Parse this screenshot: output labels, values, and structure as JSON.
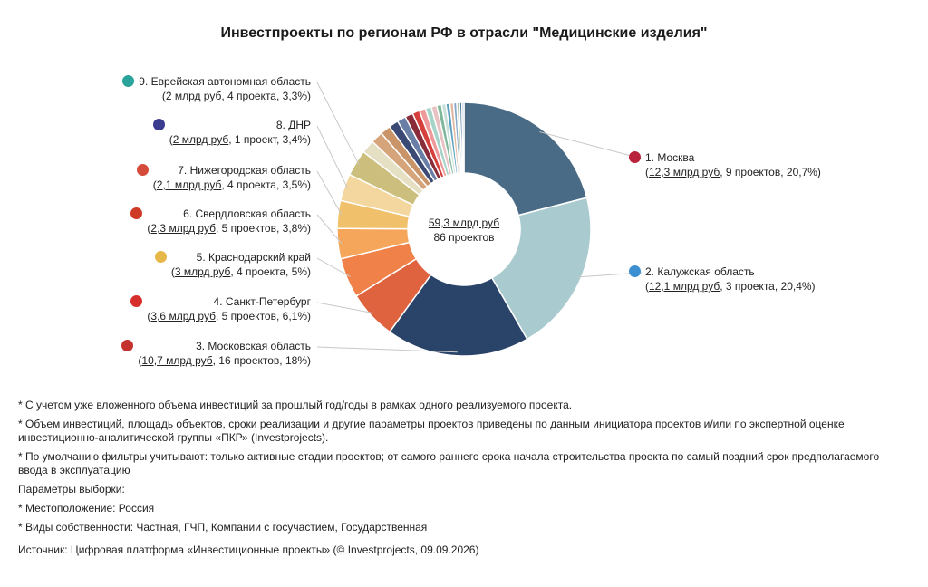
{
  "title": "Инвестпроекты по регионам РФ в отрасли \"Медицинские изделия\"",
  "center": {
    "amount": "59,3 млрд руб",
    "projects": "86 проектов"
  },
  "chart_data": {
    "type": "pie",
    "donut": true,
    "total": 59.3,
    "unit": "млрд руб",
    "slices": [
      {
        "label": "1. Москва",
        "amount": "12,3 млрд руб",
        "rest": ", 9 проектов, 20,7%)",
        "value": 20.7,
        "color": "#4a6b86",
        "badge": "#b8223a"
      },
      {
        "label": "2. Калужская область",
        "amount": "12,1 млрд руб",
        "rest": ", 3 проекта, 20,4%)",
        "value": 20.4,
        "color": "#a9cace",
        "badge": "#3c8fd0"
      },
      {
        "label": "3. Московская область",
        "amount": "10,7 млрд руб",
        "rest": ", 16 проектов, 18%)",
        "value": 18.0,
        "color": "#2a4469",
        "badge": "#c5322e"
      },
      {
        "label": "4. Санкт-Петербург",
        "amount": "3,6 млрд руб",
        "rest": ", 5 проектов, 6,1%)",
        "value": 6.1,
        "color": "#e0633f",
        "badge": "#d62d2d"
      },
      {
        "label": "5. Краснодарский край",
        "amount": "3 млрд руб",
        "rest": ", 4 проекта, 5%)",
        "value": 5.0,
        "color": "#f08149",
        "badge": "#e6b84a"
      },
      {
        "label": "6. Свердловская область",
        "amount": "2,3 млрд руб",
        "rest": ", 5 проектов, 3,8%)",
        "value": 3.8,
        "color": "#f5a65b",
        "badge": "#cf3a26"
      },
      {
        "label": "7. Нижегородская область",
        "amount": "2,1 млрд руб",
        "rest": ", 4 проекта, 3,5%)",
        "value": 3.5,
        "color": "#f0c06a",
        "badge": "#d44b3a"
      },
      {
        "label": "8. ДНР",
        "amount": "2 млрд руб",
        "rest": ", 1 проект, 3,4%)",
        "value": 3.4,
        "color": "#f4d79e",
        "badge": "#3b3b8f"
      },
      {
        "label": "9. Еврейская автономная область",
        "amount": "2 млрд руб",
        "rest": ", 4 проекта, 3,3%)",
        "value": 3.3,
        "color": "#ccbf7d",
        "badge": "#2aa39b"
      }
    ],
    "others": [
      {
        "value": 1.7,
        "color": "#e5e0c3"
      },
      {
        "value": 1.5,
        "color": "#d6a47a"
      },
      {
        "value": 1.3,
        "color": "#c99467"
      },
      {
        "value": 1.2,
        "color": "#3a4a74"
      },
      {
        "value": 1.1,
        "color": "#6a7fa6"
      },
      {
        "value": 1.0,
        "color": "#8a2b3a"
      },
      {
        "value": 0.9,
        "color": "#d6403c"
      },
      {
        "value": 0.8,
        "color": "#ef9a9a"
      },
      {
        "value": 0.75,
        "color": "#a6d4c8"
      },
      {
        "value": 0.7,
        "color": "#e8c2c2"
      },
      {
        "value": 0.6,
        "color": "#7fb89a"
      },
      {
        "value": 0.55,
        "color": "#c8e0d8"
      },
      {
        "value": 0.5,
        "color": "#5a9fc0"
      },
      {
        "value": 0.45,
        "color": "#e0b7a0"
      },
      {
        "value": 0.4,
        "color": "#86a8c8"
      },
      {
        "value": 0.35,
        "color": "#b0c4a6"
      },
      {
        "value": 0.3,
        "color": "#4f7d9e"
      },
      {
        "value": 0.25,
        "color": "#a3b8cc"
      }
    ]
  },
  "notes": [
    "* С учетом уже вложенного объема инвестиций за прошлый год/годы в рамках одного реализуемого проекта.",
    "* Объем инвестиций, площадь объектов, сроки реализации и другие параметры проектов приведены по данным инициатора проектов и/или по экспертной оценке инвестиционно-аналитической группы «ПКР» (Investprojects).",
    "* По умолчанию фильтры учитывают: только активные стадии проектов; от самого раннего срока начала строительства проекта по самый поздний срок предполагаемого ввода в эксплуатацию",
    "Параметры выборки:",
    "* Местоположение: Россия",
    "* Виды собственности: Частная, ГЧП, Компании с госучастием, Государственная"
  ],
  "source": "Источник: Цифровая платформа «Инвестиционные проекты» (© Investprojects, 09.09.2026)"
}
